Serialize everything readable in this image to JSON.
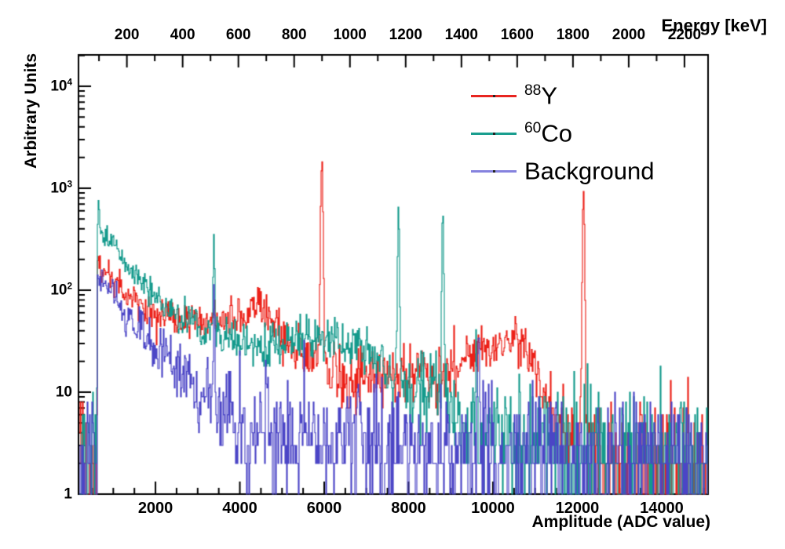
{
  "figure": {
    "x_axis_title": "Amplitude (ADC value)",
    "top_axis_title": "Energy [keV]",
    "y_axis_title": "Arbitrary Units"
  },
  "legend": {
    "items": [
      {
        "sup": "88",
        "label": "Y",
        "color": "#e82520"
      },
      {
        "sup": "60",
        "label": "Co",
        "color": "#1a9e8f"
      },
      {
        "sup": "",
        "label": "Background",
        "color": "#8582de"
      }
    ]
  },
  "chart_data": {
    "type": "line",
    "style": "step-histogram, log y scale",
    "title": "",
    "xlabel": "Amplitude (ADC value)",
    "ylabel": "Arbitrary Units",
    "top_axis_label": "Energy [keV]",
    "grid": false,
    "legend_position": "top-right inside",
    "x_axis": {
      "range_adc": [
        175,
        15100
      ],
      "major_ticks": [
        2000,
        4000,
        6000,
        8000,
        10000,
        12000,
        14000
      ],
      "minor_step": 500
    },
    "top_axis": {
      "kev_per_adc": 0.1513,
      "major_ticks_kev": [
        200,
        400,
        600,
        800,
        1000,
        1200,
        1400,
        1600,
        1800,
        2000,
        2200
      ],
      "minor_step_kev": 100
    },
    "y_axis": {
      "scale": "log",
      "range": [
        1,
        20000
      ],
      "labels": [
        {
          "base": "1",
          "exp": "",
          "value": 1
        },
        {
          "base": "10",
          "exp": "",
          "value": 10
        },
        {
          "base": "10",
          "exp": "2",
          "value": 100
        },
        {
          "base": "10",
          "exp": "3",
          "value": 1000
        },
        {
          "base": "10",
          "exp": "4",
          "value": 10000
        }
      ]
    },
    "series": [
      {
        "name": "88Y",
        "color": "#ec2018",
        "noise_region": {
          "adc_from": 175,
          "adc_to": 620,
          "max_counts": 11
        },
        "envelope_adc_counts": [
          [
            620,
            185
          ],
          [
            700,
            165
          ],
          [
            800,
            150
          ],
          [
            1000,
            126
          ],
          [
            1200,
            105
          ],
          [
            1400,
            90
          ],
          [
            1700,
            70
          ],
          [
            1950,
            58
          ],
          [
            2300,
            52
          ],
          [
            2700,
            50
          ],
          [
            3200,
            51
          ],
          [
            3700,
            50
          ],
          [
            4000,
            54
          ],
          [
            4200,
            62
          ],
          [
            4450,
            72
          ],
          [
            4600,
            65
          ],
          [
            4800,
            45
          ],
          [
            5000,
            32
          ],
          [
            5300,
            26
          ],
          [
            5600,
            22
          ],
          [
            5850,
            20
          ],
          [
            6100,
            15
          ],
          [
            6400,
            13
          ],
          [
            7000,
            13
          ],
          [
            7600,
            14
          ],
          [
            8200,
            16
          ],
          [
            8800,
            18
          ],
          [
            9300,
            21
          ],
          [
            9700,
            25
          ],
          [
            10100,
            29
          ],
          [
            10450,
            33
          ],
          [
            10650,
            33
          ],
          [
            10850,
            26
          ],
          [
            11000,
            18
          ],
          [
            11150,
            12
          ],
          [
            11350,
            7
          ],
          [
            11600,
            5
          ],
          [
            11900,
            4.2
          ],
          [
            12300,
            3
          ],
          [
            12600,
            2
          ],
          [
            13000,
            1.6
          ],
          [
            14000,
            1.45
          ],
          [
            15100,
            1.4
          ]
        ],
        "peaks": [
          {
            "adc": 5390,
            "amp": 35,
            "sigma": 10
          },
          {
            "adc": 5935,
            "kev": 898,
            "amp": 1780,
            "sigma": 20
          },
          {
            "adc": 12135,
            "kev": 1836,
            "amp": 850,
            "sigma": 18
          }
        ]
      },
      {
        "name": "60Co",
        "color": "#149a8c",
        "noise_region": {
          "adc_from": 175,
          "adc_to": 620,
          "max_counts": 14
        },
        "envelope_adc_counts": [
          [
            620,
            390
          ],
          [
            700,
            360
          ],
          [
            800,
            330
          ],
          [
            1000,
            265
          ],
          [
            1200,
            210
          ],
          [
            1400,
            165
          ],
          [
            1700,
            115
          ],
          [
            1950,
            88
          ],
          [
            2300,
            65
          ],
          [
            2700,
            50
          ],
          [
            3100,
            43
          ],
          [
            3500,
            36
          ],
          [
            3900,
            30
          ],
          [
            4400,
            28
          ],
          [
            5000,
            30
          ],
          [
            5500,
            32
          ],
          [
            6000,
            33
          ],
          [
            6500,
            31
          ],
          [
            6900,
            27
          ],
          [
            7200,
            23
          ],
          [
            7450,
            17
          ],
          [
            7600,
            13
          ],
          [
            7900,
            11
          ],
          [
            8300,
            10
          ],
          [
            8650,
            9
          ],
          [
            9000,
            6
          ],
          [
            9300,
            4.5
          ],
          [
            9700,
            3.5
          ],
          [
            10300,
            3
          ],
          [
            11000,
            2.6
          ],
          [
            12000,
            2.3
          ],
          [
            13000,
            2.4
          ],
          [
            14000,
            2.3
          ],
          [
            15100,
            2.2
          ]
        ],
        "peaks": [
          {
            "adc": 650,
            "amp": 550,
            "sigma": 12
          },
          {
            "adc": 3378,
            "kev": 511,
            "amp": 300,
            "sigma": 12
          },
          {
            "adc": 7753,
            "kev": 1173,
            "amp": 560,
            "sigma": 16
          },
          {
            "adc": 8804,
            "kev": 1332,
            "amp": 480,
            "sigma": 16
          },
          {
            "adc": 9600,
            "amp": 42,
            "sigma": 14
          }
        ]
      },
      {
        "name": "Background",
        "color": "#4b45c6",
        "noise_region": {
          "adc_from": 175,
          "adc_to": 620,
          "max_counts": 10
        },
        "envelope_adc_counts": [
          [
            620,
            150
          ],
          [
            700,
            130
          ],
          [
            800,
            112
          ],
          [
            1000,
            82
          ],
          [
            1200,
            63
          ],
          [
            1400,
            50
          ],
          [
            1700,
            38
          ],
          [
            1950,
            29
          ],
          [
            2300,
            20
          ],
          [
            2700,
            13
          ],
          [
            3100,
            9
          ],
          [
            3500,
            6.5
          ],
          [
            3900,
            5
          ],
          [
            4400,
            4.2
          ],
          [
            5000,
            3.5
          ],
          [
            5600,
            3.2
          ],
          [
            6500,
            3.1
          ],
          [
            7500,
            3.0
          ],
          [
            8500,
            2.8
          ],
          [
            9300,
            2.6
          ],
          [
            10500,
            2.4
          ],
          [
            12000,
            2.3
          ],
          [
            13500,
            2.3
          ],
          [
            15100,
            2.2
          ]
        ],
        "peaks": [
          {
            "adc": 3378,
            "kev": 511,
            "amp": 100,
            "sigma": 12
          },
          {
            "adc": 9650,
            "kev": 1460,
            "amp": 47,
            "sigma": 14
          }
        ]
      }
    ]
  }
}
